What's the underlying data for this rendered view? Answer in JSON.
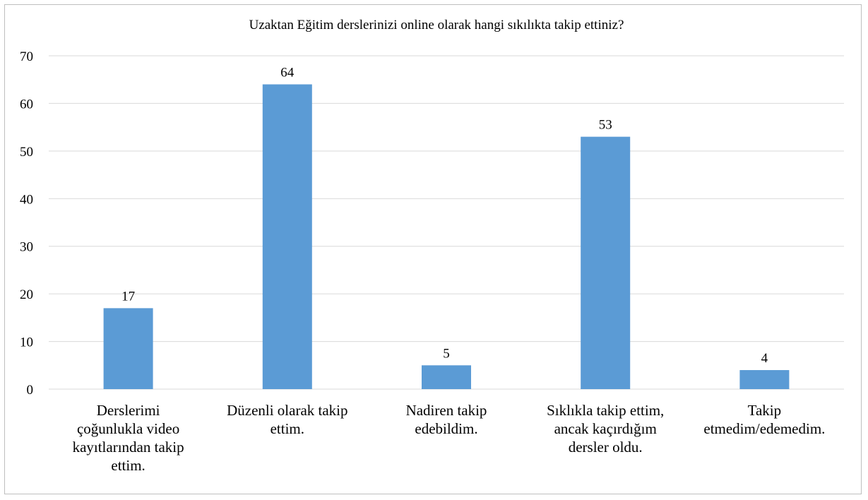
{
  "chart_data": {
    "type": "bar",
    "title": "Uzaktan Eğitim derslerinizi online olarak hangi sıkılıkta takip ettiniz?",
    "categories": [
      "Derslerimi çoğunlukla video kayıtlarından takip ettim.",
      "Düzenli olarak takip ettim.",
      "Nadiren takip edebildim.",
      "Sıklıkla takip ettim, ancak kaçırdığım dersler oldu.",
      "Takip etmedim/edemedim."
    ],
    "category_lines": [
      [
        "Derslerimi",
        "çoğunlukla video",
        "kayıtlarından takip",
        "ettim."
      ],
      [
        "Düzenli olarak takip",
        "ettim."
      ],
      [
        "Nadiren takip",
        "edebildim."
      ],
      [
        "Sıklıkla takip ettim,",
        "ancak kaçırdığım",
        "dersler oldu."
      ],
      [
        "Takip",
        "etmedim/edemedim."
      ]
    ],
    "values": [
      17,
      64,
      5,
      53,
      4
    ],
    "data_labels": [
      "17",
      "64",
      "5",
      "53",
      "4"
    ],
    "yticks": [
      "0",
      "10",
      "20",
      "30",
      "40",
      "50",
      "60",
      "70"
    ],
    "xlabel": "",
    "ylabel": "",
    "ylim": [
      0,
      70
    ],
    "grid": true,
    "legend": "none",
    "bar_color": "#5b9bd5"
  }
}
